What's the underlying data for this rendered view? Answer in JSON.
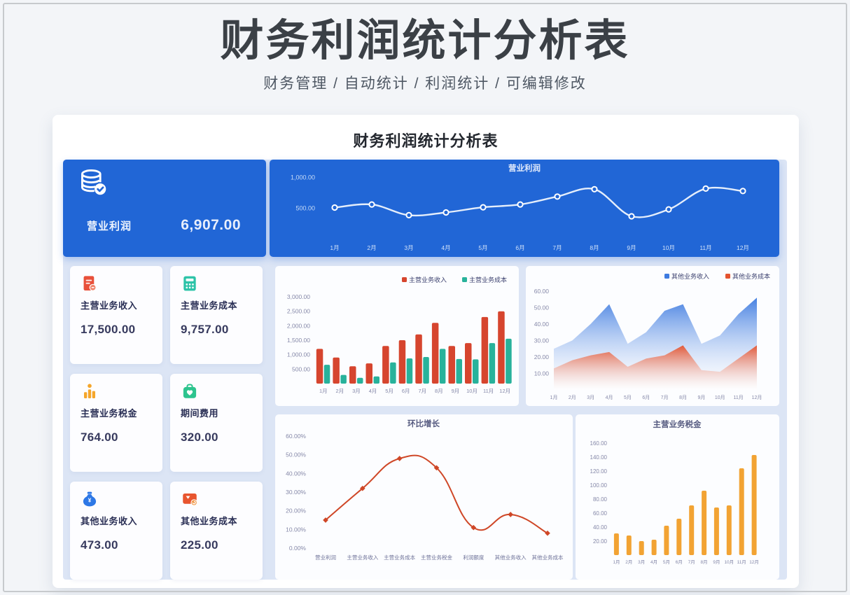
{
  "page": {
    "title": "财务利润统计分析表",
    "subtitle": "财务管理 / 自动统计 / 利润统计 / 可编辑修改",
    "card_title": "财务利润统计分析表"
  },
  "summary": {
    "profit": {
      "label": "营业利润",
      "value": "6,907.00",
      "icon": "database-icon"
    },
    "stats": [
      {
        "label": "主营业务收入",
        "value": "17,500.00",
        "icon": "document-icon",
        "color": "#e8503a"
      },
      {
        "label": "主营业务成本",
        "value": "9,757.00",
        "icon": "calculator-icon",
        "color": "#2cc3a8"
      },
      {
        "label": "主营业务税金",
        "value": "764.00",
        "icon": "podium-icon",
        "color": "#f5a62b"
      },
      {
        "label": "期间费用",
        "value": "320.00",
        "icon": "briefcase-icon",
        "color": "#2dc48e"
      },
      {
        "label": "其他业务收入",
        "value": "473.00",
        "icon": "moneybag-icon",
        "color": "#2e78e6"
      },
      {
        "label": "其他业务成本",
        "value": "225.00",
        "icon": "card-icon",
        "color": "#e8552e"
      }
    ]
  },
  "colors": {
    "accent_blue": "#2166d6",
    "content_bg": "#dce5f5",
    "bar_red": "#d6452e",
    "bar_teal": "#28b29b",
    "area_blue": "#3e7be0",
    "area_red": "#e4532f",
    "growth_line": "#cf4727",
    "tax_orange": "#f2a333"
  },
  "chart_data": [
    {
      "id": "operating-profit-by-month",
      "type": "line",
      "title": "营业利润",
      "categories": [
        "1月",
        "2月",
        "3月",
        "4月",
        "5月",
        "6月",
        "7月",
        "8月",
        "9月",
        "10月",
        "11月",
        "12月"
      ],
      "values": [
        510,
        560,
        385,
        430,
        515,
        560,
        690,
        810,
        367,
        480,
        820,
        780
      ],
      "ylim": [
        0,
        1100
      ],
      "ytick_values": [
        500,
        1000
      ],
      "ytick_labels": [
        "500.00",
        "1,000.00"
      ],
      "legend_position": "none",
      "grid": false,
      "theme": "blue-panel"
    },
    {
      "id": "main-business-income-cost",
      "type": "bar",
      "title": "",
      "categories": [
        "1月",
        "2月",
        "3月",
        "4月",
        "5月",
        "6月",
        "7月",
        "8月",
        "9月",
        "10月",
        "11月",
        "12月"
      ],
      "series": [
        {
          "name": "主营业务收入",
          "color": "#d6452e",
          "values": [
            1200,
            900,
            600,
            700,
            1300,
            1500,
            1700,
            2100,
            1300,
            1400,
            2300,
            2500
          ]
        },
        {
          "name": "主营业务成本",
          "color": "#28b29b",
          "values": [
            650,
            300,
            200,
            250,
            730,
            870,
            920,
            1200,
            850,
            837,
            1400,
            1550
          ]
        }
      ],
      "ylim": [
        0,
        3000
      ],
      "ytick_values": [
        500,
        1000,
        1500,
        2000,
        2500,
        3000
      ],
      "ytick_labels": [
        "500.00",
        "1,000.00",
        "1,500.00",
        "2,000.00",
        "2,500.00",
        "3,000.00"
      ],
      "legend_position": "top-right",
      "grid": false
    },
    {
      "id": "other-business-income-cost",
      "type": "area",
      "title": "",
      "categories": [
        "1月",
        "2月",
        "3月",
        "4月",
        "5月",
        "6月",
        "7月",
        "8月",
        "9月",
        "10月",
        "11月",
        "12月"
      ],
      "series": [
        {
          "name": "其他业务收入",
          "color": "#3e7be0",
          "values": [
            25,
            30,
            40,
            52,
            28,
            35,
            48,
            52,
            28,
            33,
            46,
            56
          ]
        },
        {
          "name": "其他业务成本",
          "color": "#e4532f",
          "values": [
            13,
            18,
            21,
            23,
            14,
            19,
            21,
            27,
            12,
            11,
            19,
            27
          ]
        }
      ],
      "ylim": [
        0,
        65
      ],
      "ytick_values": [
        10,
        20,
        30,
        40,
        50,
        60
      ],
      "ytick_labels": [
        "10.00",
        "20.00",
        "30.00",
        "40.00",
        "50.00",
        "60.00"
      ],
      "legend_position": "top-right",
      "grid": false
    },
    {
      "id": "mom-growth",
      "type": "line",
      "title": "环比增长",
      "categories": [
        "营业利润",
        "主营业务收入",
        "主营业务成本",
        "主营业务税金",
        "利润额度",
        "其他业务收入",
        "其他业务成本"
      ],
      "values": [
        15,
        32,
        48,
        43,
        11,
        18,
        8
      ],
      "unit": "%",
      "ylim": [
        0,
        60
      ],
      "ytick_values": [
        0,
        10,
        20,
        30,
        40,
        50,
        60
      ],
      "ytick_labels": [
        "0.00%",
        "10.00%",
        "20.00%",
        "30.00%",
        "40.00%",
        "50.00%",
        "60.00%"
      ],
      "legend_position": "none",
      "grid": false
    },
    {
      "id": "main-business-tax",
      "type": "bar",
      "title": "主营业务税金",
      "categories": [
        "1月",
        "2月",
        "3月",
        "4月",
        "5月",
        "6月",
        "7月",
        "8月",
        "9月",
        "10月",
        "11月",
        "12月"
      ],
      "series": [
        {
          "name": "主营业务税金",
          "color": "#f2a333",
          "values": [
            31,
            28,
            20,
            22,
            42,
            52,
            71,
            92,
            68,
            71,
            124,
            143
          ]
        }
      ],
      "ylim": [
        0,
        160
      ],
      "ytick_values": [
        20,
        40,
        60,
        80,
        100,
        120,
        140,
        160
      ],
      "ytick_labels": [
        "20.00",
        "40.00",
        "60.00",
        "80.00",
        "100.00",
        "120.00",
        "140.00",
        "160.00"
      ],
      "legend_position": "none",
      "grid": false
    }
  ]
}
